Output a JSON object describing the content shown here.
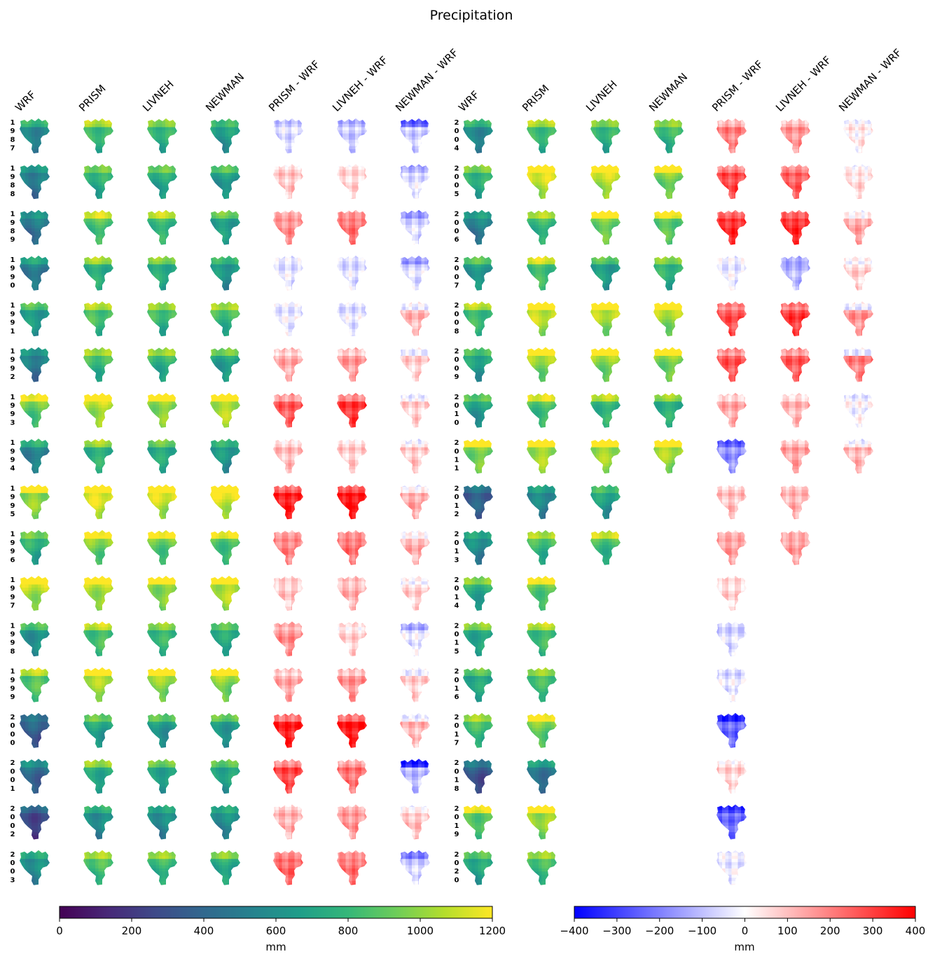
{
  "chart_data": {
    "type": "heatmap",
    "title": "Precipitation",
    "units": "mm",
    "column_headers": [
      "WRF",
      "PRISM",
      "LIVNEH",
      "NEWMAN",
      "PRISM - WRF",
      "LIVNEH - WRF",
      "NEWMAN - WRF",
      "WRF",
      "PRISM",
      "LIVNEH",
      "NEWMAN",
      "PRISM - WRF",
      "LIVNEH - WRF",
      "NEWMAN - WRF"
    ],
    "left_block": {
      "years": [
        "1987",
        "1988",
        "1989",
        "1990",
        "1991",
        "1992",
        "1993",
        "1994",
        "1995",
        "1996",
        "1997",
        "1998",
        "1999",
        "2000",
        "2001",
        "2002",
        "2003"
      ],
      "panels_per_year": 7,
      "mean_annual_precip_mm": {
        "WRF": [
          630,
          560,
          520,
          560,
          720,
          560,
          960,
          600,
          1050,
          800,
          1120,
          680,
          920,
          400,
          470,
          330,
          640
        ],
        "PRISM": [
          880,
          800,
          900,
          820,
          900,
          860,
          1120,
          830,
          1180,
          1000,
          1120,
          900,
          1080,
          740,
          800,
          650,
          880
        ],
        "LIVNEH": [
          830,
          760,
          860,
          800,
          860,
          820,
          1060,
          780,
          1150,
          960,
          1060,
          840,
          1040,
          700,
          760,
          620,
          830
        ],
        "NEWMAN": [
          700,
          700,
          740,
          690,
          860,
          740,
          1120,
          680,
          1180,
          920,
          1120,
          760,
          1040,
          720,
          760,
          620,
          780
        ]
      },
      "mean_difference_mm": {
        "PRISM - WRF": [
          -60,
          80,
          160,
          -40,
          -30,
          120,
          230,
          90,
          320,
          180,
          80,
          160,
          120,
          320,
          260,
          110,
          220
        ],
        "LIVNEH - WRF": [
          -90,
          60,
          200,
          -50,
          -40,
          140,
          280,
          70,
          340,
          200,
          110,
          60,
          150,
          330,
          200,
          150,
          200
        ],
        "NEWMAN - WRF": [
          -120,
          -70,
          -90,
          -80,
          80,
          50,
          50,
          60,
          100,
          90,
          50,
          -60,
          50,
          80,
          -170,
          70,
          -110
        ]
      }
    },
    "right_block": {
      "years": [
        "2004",
        "2005",
        "2006",
        "2007",
        "2008",
        "2009",
        "2010",
        "2011",
        "2012",
        "2013",
        "2014",
        "2015",
        "2016",
        "2017",
        "2018",
        "2019",
        "2020"
      ],
      "mean_annual_precip_mm": {
        "WRF": [
          640,
          820,
          560,
          700,
          880,
          740,
          720,
          1020,
          420,
          620,
          780,
          780,
          760,
          860,
          380,
          960,
          760
        ],
        "PRISM": [
          880,
          1150,
          840,
          900,
          1140,
          1050,
          900,
          1100,
          600,
          860,
          960,
          880,
          860,
          980,
          540,
          1080,
          860
        ],
        "LIVNEH": [
          830,
          1120,
          1000,
          730,
          1100,
          1040,
          850,
          1080,
          720,
          880
        ],
        "NEWMAN": [
          840,
          1000,
          960,
          830,
          1080,
          1020,
          820,
          1080
        ]
      },
      "mean_difference_mm": {
        "PRISM - WRF": [
          180,
          260,
          300,
          -30,
          250,
          240,
          120,
          -190,
          90,
          140,
          60,
          -60,
          -40,
          -260,
          60,
          -250,
          -30
        ],
        "LIVNEH - WRF": [
          150,
          230,
          300,
          -120,
          280,
          230,
          100,
          130,
          110,
          140
        ],
        "NEWMAN - WRF": [
          20,
          40,
          100,
          50,
          120,
          140,
          -10,
          80
        ]
      }
    },
    "colorbars": [
      {
        "cmap": "viridis",
        "vmin": 0,
        "vmax": 1200,
        "ticks": [
          "0",
          "200",
          "400",
          "600",
          "800",
          "1000",
          "1200"
        ],
        "label": "mm"
      },
      {
        "cmap": "bwr",
        "vmin": -400,
        "vmax": 400,
        "ticks": [
          "−400",
          "−300",
          "−200",
          "−100",
          "0",
          "100",
          "200",
          "300",
          "400"
        ],
        "label": "mm"
      }
    ]
  }
}
